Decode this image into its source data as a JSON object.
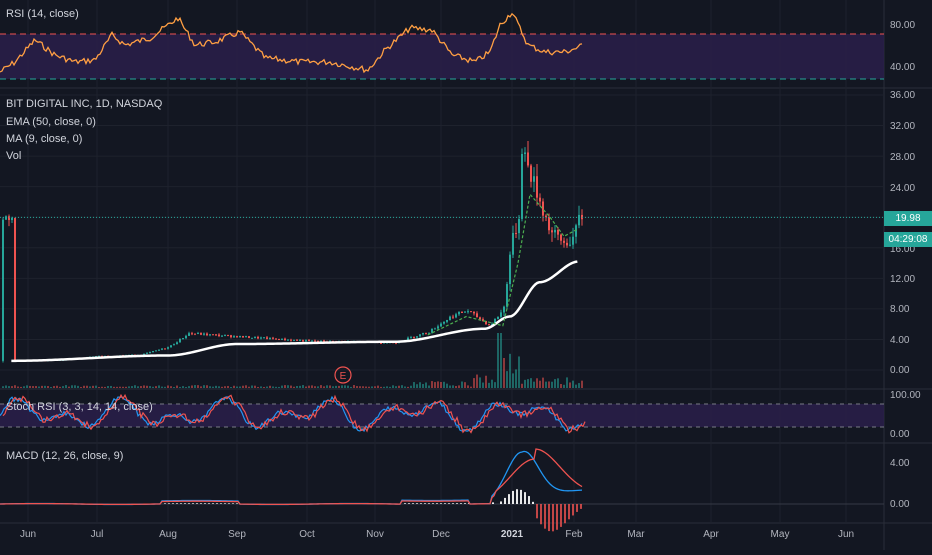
{
  "symbol": {
    "title": "BIT DIGITAL INC, 1D, NASDAQ",
    "ema_label": "EMA (50, close, 0)",
    "ma_label": "MA (9, close, 0)",
    "vol_label": "Vol",
    "earnings_marker": "E"
  },
  "colors": {
    "background": "#131722",
    "grid": "#1e222d",
    "up": "#26a69a",
    "down": "#ef5350",
    "rsi_line": "#ff9f43",
    "rsi_band": "#2a1f4a",
    "ema_line": "#ffffff",
    "ma_line": "#4caf50",
    "macd_line": "#2196f3",
    "signal_line": "#ef5350",
    "stoch_k": "#2196f3",
    "stoch_d": "#ef5350",
    "price_badge": "#26a69a",
    "overbought_line": "#ef5350",
    "oversold_line": "#26a69a"
  },
  "panes": {
    "rsi": {
      "label": "RSI (14, close)",
      "ticks": [
        "80.00",
        "40.00"
      ]
    },
    "price": {
      "ticks": [
        "36.00",
        "32.00",
        "28.00",
        "24.00",
        "16.00",
        "12.00",
        "8.00",
        "4.00",
        "0.00"
      ],
      "last_price": "19.98",
      "countdown": "04:29:08"
    },
    "stoch": {
      "label": "Stoch RSI (3, 3, 14, 14, close)",
      "ticks": [
        "100.00",
        "0.00"
      ]
    },
    "macd": {
      "label": "MACD (12, 26, close, 9)",
      "ticks": [
        "4.00",
        "0.00"
      ]
    }
  },
  "time_axis": [
    {
      "label": "Jun",
      "bold": false
    },
    {
      "label": "Jul",
      "bold": false
    },
    {
      "label": "Aug",
      "bold": false
    },
    {
      "label": "Sep",
      "bold": false
    },
    {
      "label": "Oct",
      "bold": false
    },
    {
      "label": "Nov",
      "bold": false
    },
    {
      "label": "Dec",
      "bold": false
    },
    {
      "label": "2021",
      "bold": true
    },
    {
      "label": "Feb",
      "bold": false
    },
    {
      "label": "Mar",
      "bold": false
    },
    {
      "label": "Apr",
      "bold": false
    },
    {
      "label": "May",
      "bold": false
    },
    {
      "label": "Jun",
      "bold": false
    }
  ],
  "chart_data": {
    "type": "candlestick",
    "title": "BIT DIGITAL INC, 1D, NASDAQ",
    "ylim": [
      0,
      36
    ],
    "price_path": [
      [
        "2020-05-20",
        1.2
      ],
      [
        "2020-06-15",
        1.3
      ],
      [
        "2020-07-01",
        1.8
      ],
      [
        "2020-07-20",
        2.0
      ],
      [
        "2020-08-01",
        3.0
      ],
      [
        "2020-08-10",
        4.8
      ],
      [
        "2020-08-25",
        4.5
      ],
      [
        "2020-09-10",
        4.2
      ],
      [
        "2020-10-01",
        3.8
      ],
      [
        "2020-10-20",
        3.7
      ],
      [
        "2020-11-10",
        3.6
      ],
      [
        "2020-11-25",
        5.0
      ],
      [
        "2020-12-05",
        7.0
      ],
      [
        "2020-12-12",
        7.8
      ],
      [
        "2020-12-22",
        5.8
      ],
      [
        "2020-12-28",
        8.0
      ],
      [
        "2020-12-31",
        16.0
      ],
      [
        "2021-01-04",
        20.0
      ],
      [
        "2021-01-05",
        30.0
      ],
      [
        "2021-01-08",
        27.0
      ],
      [
        "2021-01-12",
        24.0
      ],
      [
        "2021-01-20",
        18.0
      ],
      [
        "2021-01-27",
        16.5
      ],
      [
        "2021-02-01",
        17.5
      ],
      [
        "2021-02-03",
        19.98
      ]
    ],
    "ema50_path": [
      [
        "2020-05-20",
        1.2
      ],
      [
        "2020-08-01",
        1.9
      ],
      [
        "2020-09-01",
        3.4
      ],
      [
        "2020-11-10",
        3.7
      ],
      [
        "2020-12-20",
        5.4
      ],
      [
        "2020-12-31",
        7.0
      ],
      [
        "2021-01-15",
        11.5
      ],
      [
        "2021-02-03",
        14.2
      ]
    ],
    "ma9_path": [
      [
        "2020-11-25",
        4.6
      ],
      [
        "2020-12-12",
        7.0
      ],
      [
        "2020-12-28",
        5.8
      ],
      [
        "2021-01-04",
        14.0
      ],
      [
        "2021-01-10",
        23.0
      ],
      [
        "2021-01-20",
        20.0
      ],
      [
        "2021-01-27",
        17.5
      ],
      [
        "2021-02-03",
        18.5
      ]
    ],
    "last_price": 19.98,
    "indicators": [
      "RSI (14, close)",
      "EMA (50, close, 0)",
      "MA (9, close, 0)",
      "Vol",
      "Stoch RSI (3, 3, 14, 14, close)",
      "MACD (12, 26, close, 9)"
    ]
  }
}
